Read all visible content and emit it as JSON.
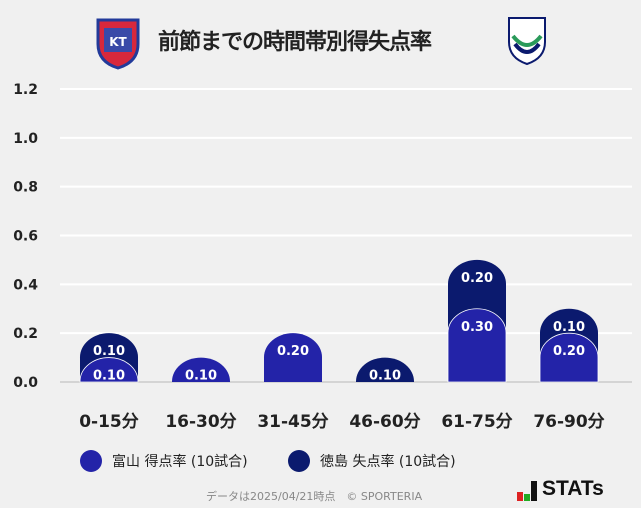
{
  "title": "前節までの時間帯別得失点率",
  "chart_data": {
    "type": "bar",
    "stacked": true,
    "title": "前節までの時間帯別得失点率",
    "categories": [
      "0-15分",
      "16-30分",
      "31-45分",
      "46-60分",
      "61-75分",
      "76-90分"
    ],
    "series": [
      {
        "name": "富山 得点率 (10試合)",
        "values": [
          0.1,
          0.1,
          0.2,
          0,
          0.3,
          0.2
        ],
        "color": "#2323a8"
      },
      {
        "name": "徳島 失点率 (10試合)",
        "values": [
          0.1,
          0,
          0,
          0.1,
          0.2,
          0.1
        ],
        "color": "#0b1a6e"
      }
    ],
    "yticks": [
      "0.0",
      "0.2",
      "0.4",
      "0.6",
      "0.8",
      "1.0",
      "1.2"
    ],
    "ylim": [
      0,
      1.2
    ],
    "grid": true,
    "legend": "bottom-left"
  },
  "legend": {
    "home": "富山 得点率 (10試合)",
    "away": "徳島 失点率 (10試合)"
  },
  "footer": "データは2025/04/21時点　© SPORTERIA",
  "brand": "STATs",
  "logos": {
    "home": "KATALLER TOYAMA",
    "away": "TOKUSHIMA VORTIS"
  }
}
